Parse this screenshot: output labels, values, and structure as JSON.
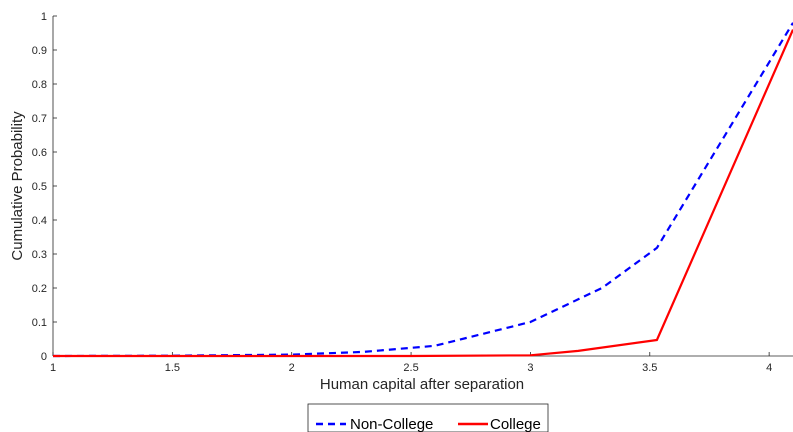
{
  "chart_data": {
    "type": "line",
    "title": "",
    "xlabel": "Human capital after separation",
    "ylabel": "Cumulative Probability",
    "xlim": [
      1,
      4.1
    ],
    "ylim": [
      0,
      1
    ],
    "xticks": [
      1,
      1.5,
      2,
      2.5,
      3,
      3.5,
      4
    ],
    "xtick_labels": [
      "1",
      "1.5",
      "2",
      "2.5",
      "3",
      "3.5",
      "4"
    ],
    "yticks": [
      0,
      0.1,
      0.2,
      0.3,
      0.4,
      0.5,
      0.6,
      0.7,
      0.8,
      0.9,
      1
    ],
    "ytick_labels": [
      "0",
      "0.1",
      "0.2",
      "0.3",
      "0.4",
      "0.5",
      "0.6",
      "0.7",
      "0.8",
      "0.9",
      "1"
    ],
    "grid": false,
    "legend_position": "bottom-outside",
    "series": [
      {
        "name": "Non-College",
        "color": "#0000ff",
        "style": "dashed",
        "x": [
          1,
          1.5,
          2,
          2.3,
          2.6,
          3,
          3.3,
          3.53,
          4.1
        ],
        "y": [
          0.0,
          0.001,
          0.004,
          0.012,
          0.03,
          0.1,
          0.2,
          0.318,
          0.98
        ]
      },
      {
        "name": "College",
        "color": "#ff0000",
        "style": "solid",
        "x": [
          1,
          2,
          2.5,
          3,
          3.2,
          3.53,
          4.1
        ],
        "y": [
          0.0,
          0.0,
          0.0,
          0.002,
          0.015,
          0.047,
          0.96
        ]
      }
    ]
  }
}
